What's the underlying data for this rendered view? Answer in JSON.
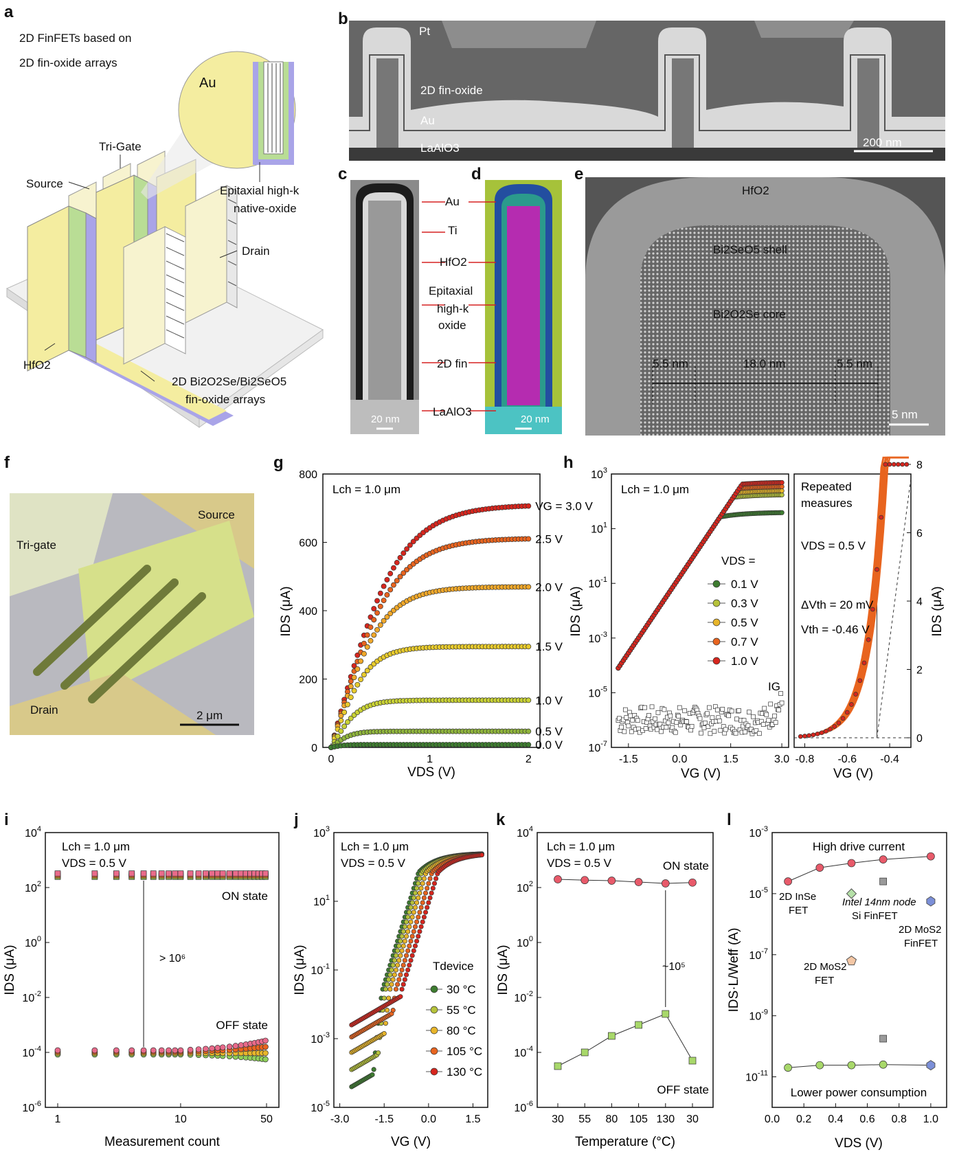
{
  "labels": {
    "a": "a",
    "b": "b",
    "c": "c",
    "d": "d",
    "e": "e",
    "f": "f",
    "g": "g",
    "h": "h",
    "i": "i",
    "j": "j",
    "k": "k",
    "l": "l"
  },
  "panel_a": {
    "title1": "2D FinFETs based on",
    "title2": "2D fin-oxide arrays",
    "au": "Au",
    "trigate": "Tri-Gate",
    "source": "Source",
    "drain": "Drain",
    "hfo2": "HfO2",
    "epi1": "Epitaxial high-k",
    "epi2": "native-oxide",
    "arr1": "2D Bi2O2Se/Bi2SeO5",
    "arr2": "fin-oxide arrays"
  },
  "panel_b": {
    "pt": "Pt",
    "fin": "2D fin-oxide",
    "au": "Au",
    "sub": "LaAlO3",
    "scale": "200 nm"
  },
  "panel_cd": {
    "au": "Au",
    "ti": "Ti",
    "hfo2": "HfO2",
    "epi1": "Epitaxial",
    "epi2": "high-k",
    "epi3": "oxide",
    "fin": "2D fin",
    "sub": "LaAlO3",
    "scale_c": "20 nm",
    "scale_d": "20 nm"
  },
  "panel_e": {
    "hfo2": "HfO2",
    "shell": "Bi2SeO5 shell",
    "core": "Bi2O2Se core",
    "d1": "5.5 nm",
    "d2": "18.0 nm",
    "d3": "5.5 nm",
    "scale": "5 nm"
  },
  "panel_f": {
    "source": "Source",
    "trigate": "Tri-gate",
    "drain": "Drain",
    "scale": "2 μm"
  },
  "chart_data": [
    {
      "panel": "g",
      "type": "line",
      "xlabel": "VDS (V)",
      "ylabel": "IDS (μA)",
      "annotation": "Lch = 1.0 μm",
      "xlim": [
        0,
        2.2
      ],
      "ylim": [
        0,
        800
      ],
      "xticks": [
        0,
        1,
        2
      ],
      "yticks": [
        0,
        200,
        400,
        600,
        800
      ],
      "series": [
        {
          "name": "VG = 3.0 V",
          "color": "#d7261e",
          "vsat": 0.6,
          "isat": 710,
          "lin": 1200
        },
        {
          "name": "2.5 V",
          "color": "#e8641f",
          "vsat": 0.55,
          "isat": 612,
          "lin": 1050
        },
        {
          "name": "2.0 V",
          "color": "#f0a82a",
          "vsat": 0.45,
          "isat": 470,
          "lin": 900
        },
        {
          "name": "1.5 V",
          "color": "#e8cb2d",
          "vsat": 0.33,
          "isat": 295,
          "lin": 700
        },
        {
          "name": "1.0 V",
          "color": "#c9d235",
          "vsat": 0.25,
          "isat": 138,
          "lin": 450
        },
        {
          "name": "0.5 V",
          "color": "#8fb43c",
          "vsat": 0.18,
          "isat": 47,
          "lin": 220
        },
        {
          "name": "0.0 V",
          "color": "#3e7c30",
          "vsat": 0.12,
          "isat": 8,
          "lin": 60
        }
      ]
    },
    {
      "panel": "h-left",
      "type": "line",
      "ylog": true,
      "xlabel": "VG (V)",
      "ylabel": "IDS (μA)",
      "annotation": "Lch = 1.0 μm",
      "legend_title": "VDS =",
      "xlim": [
        -2,
        3.2
      ],
      "ylim": [
        -7,
        3
      ],
      "xticks": [
        -1.5,
        0.0,
        1.5,
        3.0
      ],
      "yticks": [
        -7,
        -5,
        -3,
        -1,
        1,
        3
      ],
      "ig_label": "IG",
      "series": [
        {
          "name": "0.1 V",
          "color": "#3e7c30",
          "on": 1.6
        },
        {
          "name": "0.3 V",
          "color": "#b6c23a",
          "on": 2.25
        },
        {
          "name": "0.5 V",
          "color": "#e8b52a",
          "on": 2.4
        },
        {
          "name": "0.7 V",
          "color": "#e8641f",
          "on": 2.55
        },
        {
          "name": "1.0 V",
          "color": "#d7261e",
          "on": 2.7
        }
      ]
    },
    {
      "panel": "h-right",
      "type": "line",
      "xlabel": "VG (V)",
      "ylabel": "IDS (μA)",
      "text1": "Repeated",
      "text2": "measures",
      "vds": "VDS = 0.5 V",
      "dvth": "ΔVth = 20 mV",
      "vth": "Vth = -0.46 V",
      "xlim": [
        -0.85,
        -0.3
      ],
      "ylim": [
        0,
        8
      ],
      "xticks": [
        -0.8,
        -0.6,
        -0.4
      ],
      "yticks": [
        0,
        2,
        4,
        6,
        8
      ]
    },
    {
      "panel": "i",
      "type": "scatter",
      "xlog": true,
      "ylog": true,
      "xlabel": "Measurement count",
      "ylabel": "IDS (μA)",
      "annotation1": "Lch = 1.0 μm",
      "annotation2": "VDS = 0.5 V",
      "on_label": "ON state",
      "off_label": "OFF state",
      "ratio": "> 10⁶",
      "xticks": [
        1,
        10,
        50
      ],
      "yticks": [
        -6,
        -4,
        -2,
        0,
        2,
        4
      ],
      "on": 2.45,
      "off": -4.0
    },
    {
      "panel": "j",
      "type": "line",
      "ylog": true,
      "xlabel": "VG (V)",
      "ylabel": "IDS (μA)",
      "annotation1": "Lch = 1.0 μm",
      "annotation2": "VDS = 0.5 V",
      "legend_title": "Tdevice",
      "xlim": [
        -3.2,
        2.0
      ],
      "ylim": [
        -5,
        3
      ],
      "xticks": [
        -3.0,
        -1.5,
        0.0,
        1.5
      ],
      "yticks": [
        -5,
        -3,
        -1,
        1,
        3
      ],
      "series": [
        {
          "name": "30 °C",
          "color": "#3e7c30",
          "off": -4.4,
          "shift": -0.4
        },
        {
          "name": "55 °C",
          "color": "#b6c23a",
          "off": -3.9,
          "shift": -0.3
        },
        {
          "name": "80 °C",
          "color": "#e8b52a",
          "off": -3.4,
          "shift": -0.15
        },
        {
          "name": "105 °C",
          "color": "#e8641f",
          "off": -2.95,
          "shift": 0.05
        },
        {
          "name": "130 °C",
          "color": "#d7261e",
          "off": -2.6,
          "shift": 0.25
        }
      ]
    },
    {
      "panel": "k",
      "type": "line",
      "ylog": true,
      "xlabel": "Temperature (°C)",
      "ylabel": "IDS (μA)",
      "annotation1": "Lch = 1.0 μm",
      "annotation2": "VDS = 0.5 V",
      "categories": [
        "30",
        "55",
        "80",
        "105",
        "130",
        "30"
      ],
      "on_label": "ON state",
      "off_label": "OFF state",
      "ratio": "~10⁵",
      "on_values": [
        2.3,
        2.27,
        2.25,
        2.2,
        2.15,
        2.18
      ],
      "off_values": [
        -4.5,
        -4.0,
        -3.4,
        -3.0,
        -2.6,
        -4.3
      ],
      "yticks": [
        -6,
        -4,
        -2,
        0,
        2,
        4
      ]
    },
    {
      "panel": "l",
      "type": "scatter",
      "ylog": true,
      "xlabel": "VDS (V)",
      "ylabel": "IDS·L/Weff (A)",
      "top_label": "High drive current",
      "bottom_label": "Lower power consumption",
      "xlim": [
        0,
        1.1
      ],
      "ylim": [
        -12,
        -3
      ],
      "xticks": [
        0.0,
        0.2,
        0.4,
        0.6,
        0.8,
        1.0
      ],
      "yticks": [
        -11,
        -9,
        -7,
        -5,
        -3
      ],
      "on": [
        [
          0.1,
          -4.6
        ],
        [
          0.3,
          -4.15
        ],
        [
          0.5,
          -4.0
        ],
        [
          0.7,
          -3.88
        ],
        [
          1.0,
          -3.78
        ]
      ],
      "off": [
        [
          0.1,
          -10.7
        ],
        [
          0.3,
          -10.62
        ],
        [
          0.5,
          -10.62
        ],
        [
          0.7,
          -10.6
        ],
        [
          1.0,
          -10.62
        ]
      ],
      "refs": [
        {
          "name": "2D InSe FET",
          "x": 0.5,
          "y": -5.0,
          "color": "#b5e0a8",
          "shape": "diamond"
        },
        {
          "name": "Intel 14nm node Si FinFET",
          "x": 0.7,
          "y": -4.6,
          "color": "#9a9a9a",
          "shape": "square"
        },
        {
          "name": "Intel 14nm node Si FinFET off",
          "x": 0.7,
          "y": -9.75,
          "color": "#9a9a9a",
          "shape": "square"
        },
        {
          "name": "2D MoS2 FinFET",
          "x": 1.0,
          "y": -5.25,
          "color": "#7b8fd8",
          "shape": "hex"
        },
        {
          "name": "2D MoS2 FinFET off",
          "x": 1.0,
          "y": -10.62,
          "color": "#7b8fd8",
          "shape": "hex"
        },
        {
          "name": "2D MoS2 FET",
          "x": 0.5,
          "y": -7.2,
          "color": "#f4c7a5",
          "shape": "pent"
        }
      ]
    }
  ]
}
